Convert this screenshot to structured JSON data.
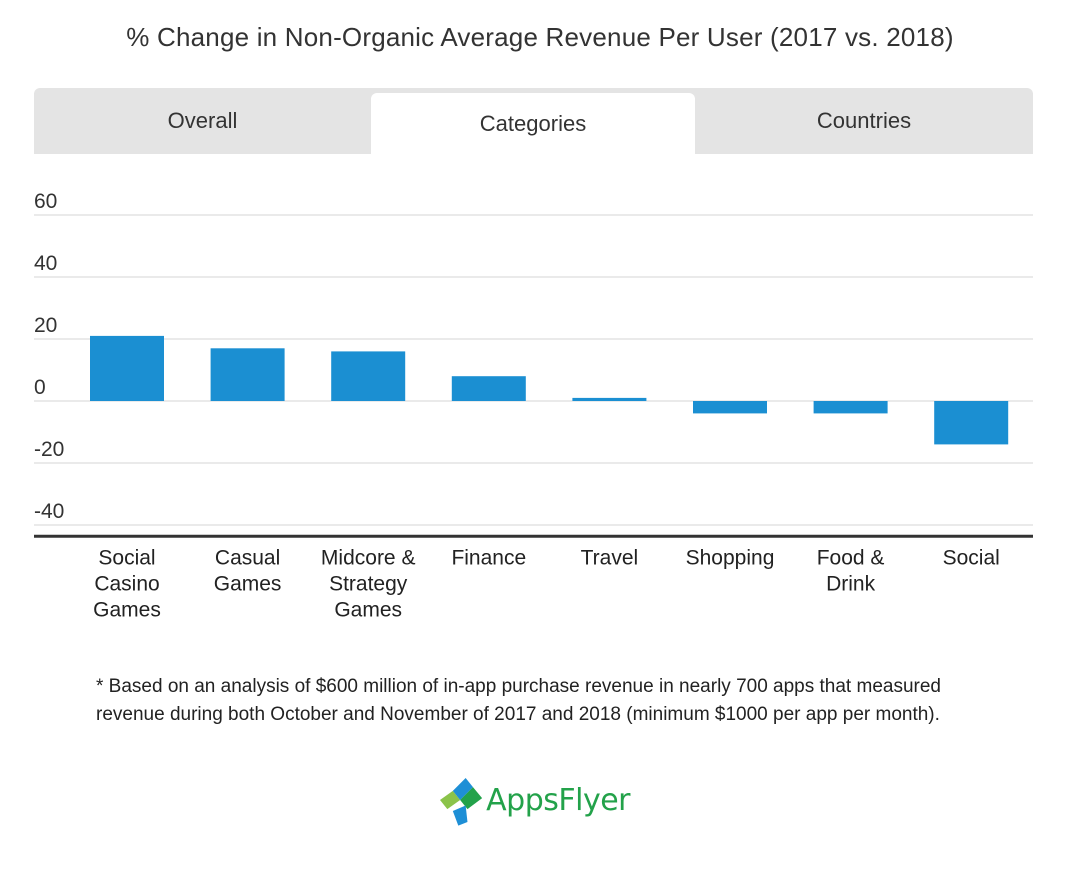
{
  "header": {
    "title": "% Change in Non-Organic Average Revenue Per User (2017 vs. 2018)"
  },
  "tabs": [
    {
      "label": "Overall",
      "active": false
    },
    {
      "label": "Categories",
      "active": true
    },
    {
      "label": "Countries",
      "active": false
    }
  ],
  "chart_data": {
    "type": "bar",
    "categories": [
      [
        "Social",
        "Casino",
        "Games"
      ],
      [
        "Casual",
        "Games"
      ],
      [
        "Midcore &",
        "Strategy",
        "Games"
      ],
      [
        "Finance"
      ],
      [
        "Travel"
      ],
      [
        "Shopping"
      ],
      [
        "Food &",
        "Drink"
      ],
      [
        "Social"
      ]
    ],
    "values": [
      21,
      17,
      16,
      8,
      1,
      -4,
      -4,
      -14
    ],
    "yticks": [
      60,
      40,
      20,
      0,
      -20,
      -40
    ],
    "ytick_labels": [
      "60",
      "40",
      "20",
      "0",
      "-20",
      "-40"
    ],
    "ylim": [
      -43,
      65
    ],
    "grid": true,
    "bar_color": "#1b8fd2"
  },
  "footnote": "* Based on an analysis of $600 million of in-app purchase revenue in nearly 700 apps that measured revenue during both October and November of 2017 and 2018 (minimum $1000 per app per month).",
  "logo": {
    "text": "AppsFlyer",
    "icon": "appsflyer-logo-icon",
    "colors": [
      "#23a24a",
      "#1e8fd6",
      "#8bc34a"
    ]
  }
}
